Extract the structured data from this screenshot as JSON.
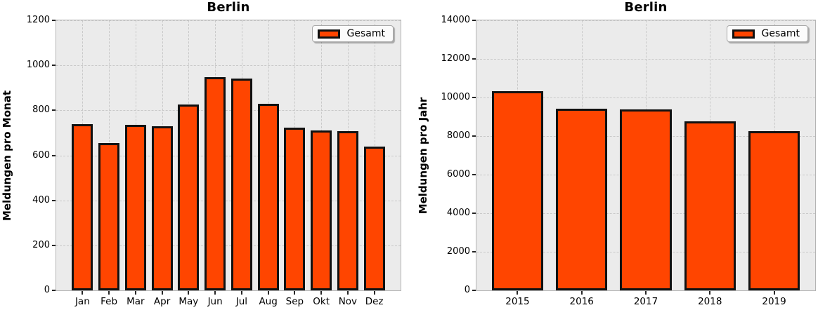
{
  "chart_data": [
    {
      "type": "bar",
      "title": "Berlin",
      "ylabel": "Meldungen pro Monat",
      "xlabel": "",
      "categories": [
        "Jan",
        "Feb",
        "Mar",
        "Apr",
        "May",
        "Jun",
        "Jul",
        "Aug",
        "Sep",
        "Okt",
        "Nov",
        "Dez"
      ],
      "values": [
        740,
        655,
        737,
        729,
        827,
        947,
        941,
        829,
        724,
        712,
        709,
        638
      ],
      "ylim": [
        0,
        1200
      ],
      "yticks": [
        0,
        200,
        400,
        600,
        800,
        1000,
        1200
      ],
      "legend": [
        "Gesamt"
      ],
      "legend_position": "upper right",
      "grid": "dashed",
      "colors": {
        "bar_fill": "#FF4500",
        "bar_edge": "#111111",
        "plot_bg": "#EBEBEB",
        "grid": "#C9C9C9",
        "spine": "#B4B4B4",
        "text": "#000000"
      }
    },
    {
      "type": "bar",
      "title": "Berlin",
      "ylabel": "Meldungen pro Jahr",
      "xlabel": "",
      "categories": [
        "2015",
        "2016",
        "2017",
        "2018",
        "2019"
      ],
      "values": [
        10330,
        9420,
        9400,
        8770,
        8240
      ],
      "ylim": [
        0,
        14000
      ],
      "yticks": [
        0,
        2000,
        4000,
        6000,
        8000,
        10000,
        12000,
        14000
      ],
      "legend": [
        "Gesamt"
      ],
      "legend_position": "upper right",
      "grid": "dashed",
      "colors": {
        "bar_fill": "#FF4500",
        "bar_edge": "#111111",
        "plot_bg": "#EBEBEB",
        "grid": "#C9C9C9",
        "spine": "#B4B4B4",
        "text": "#000000"
      }
    }
  ]
}
